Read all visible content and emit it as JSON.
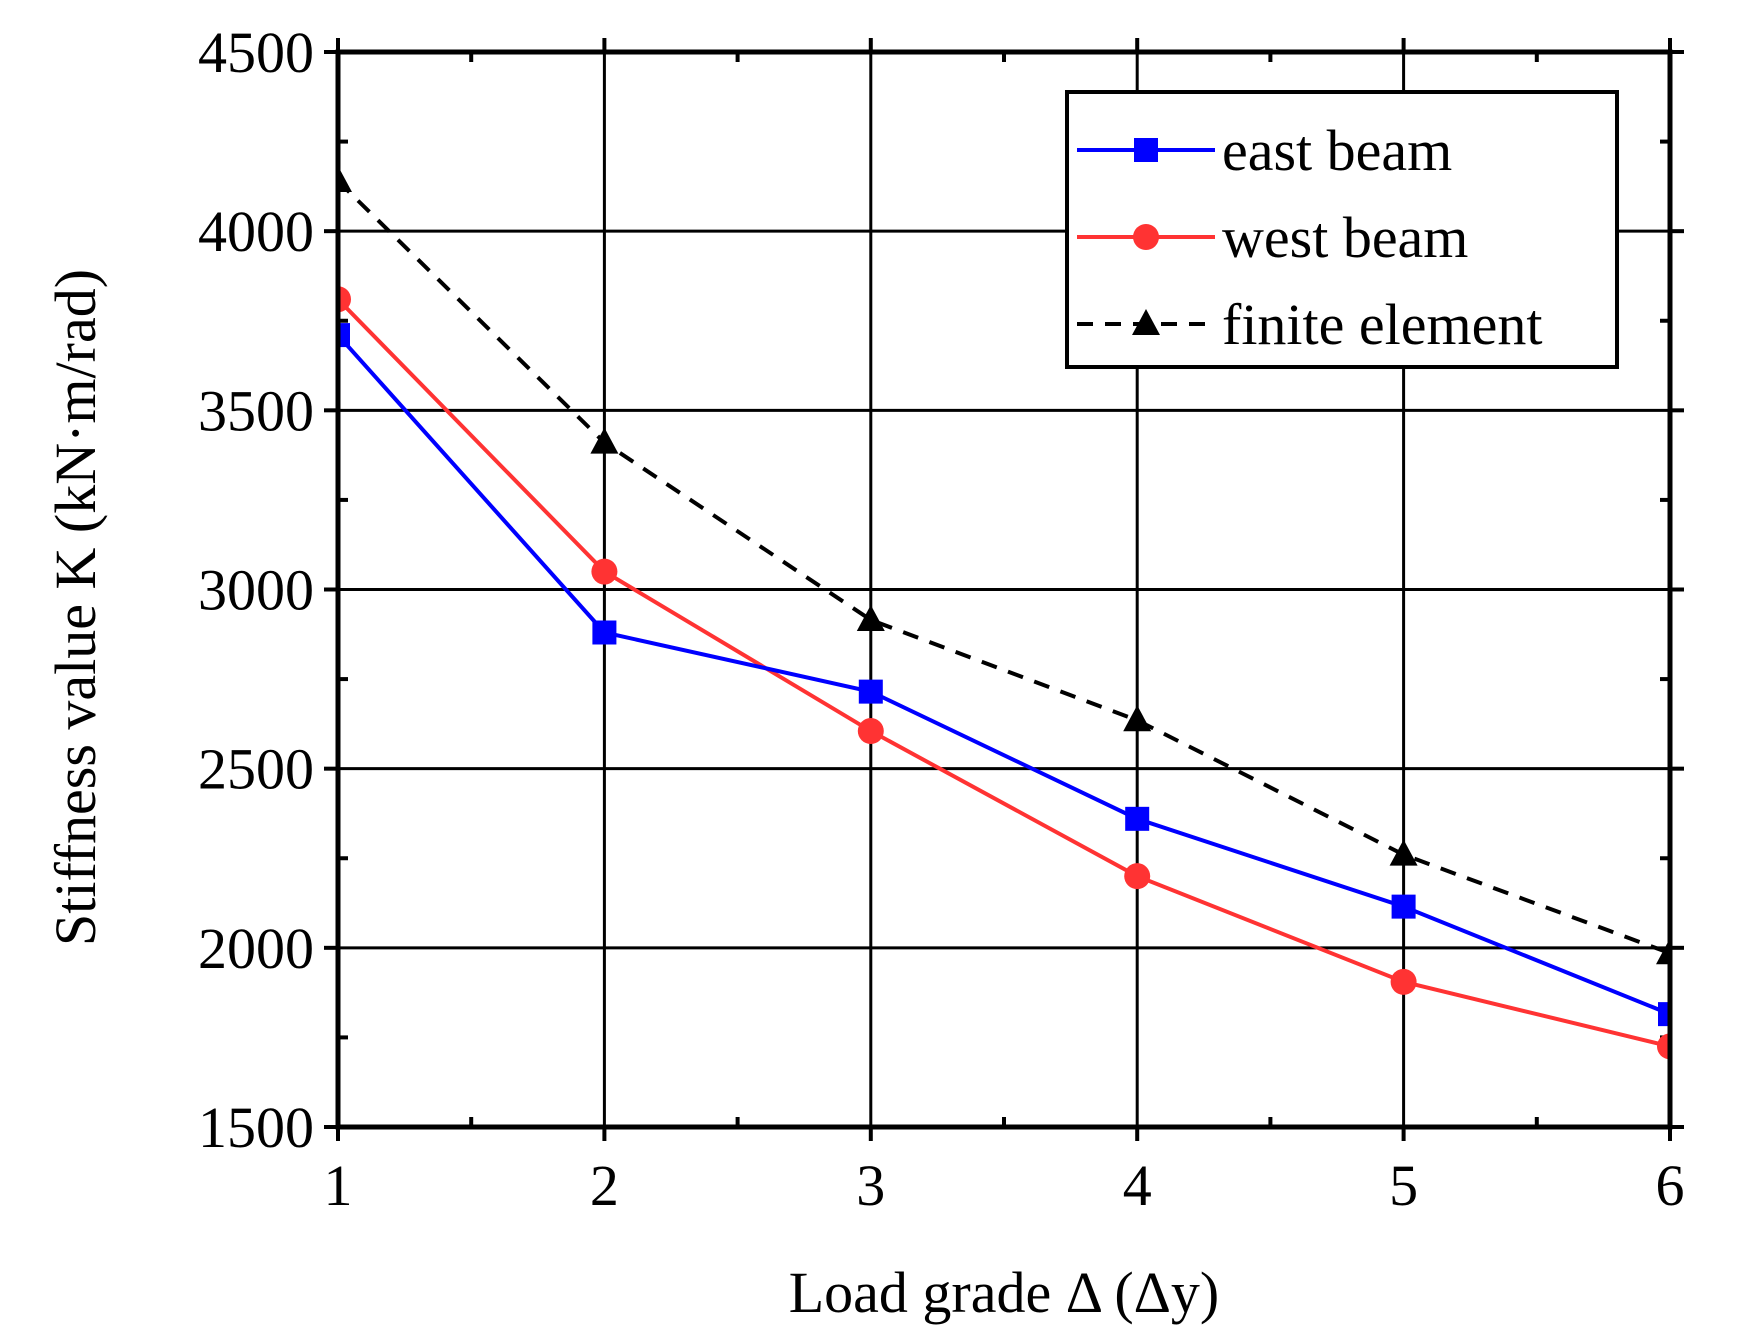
{
  "chart_data": {
    "type": "line",
    "title": "",
    "xlabel": "Load grade Δ (Δy)",
    "ylabel": "Stiffness value K (kN·m/rad)",
    "xlim": [
      1,
      6
    ],
    "ylim": [
      1500,
      4500
    ],
    "x_ticks": [
      "1",
      "2",
      "3",
      "4",
      "5",
      "6"
    ],
    "y_ticks": [
      "1500",
      "2000",
      "2500",
      "3000",
      "3500",
      "4000",
      "4500"
    ],
    "x_tick_values": [
      1,
      2,
      3,
      4,
      5,
      6
    ],
    "y_tick_values": [
      1500,
      2000,
      2500,
      3000,
      3500,
      4000,
      4500
    ],
    "grid": true,
    "legend_position": "top-right",
    "x": [
      1,
      2,
      3,
      4,
      5,
      6
    ],
    "series": [
      {
        "name": "east beam",
        "values": [
          3710,
          2880,
          2715,
          2360,
          2115,
          1815
        ],
        "color": "#0000ff",
        "marker": "square",
        "line": "solid"
      },
      {
        "name": "west beam",
        "values": [
          3810,
          3050,
          2605,
          2200,
          1905,
          1725
        ],
        "color": "#ff3333",
        "marker": "circle",
        "line": "solid"
      },
      {
        "name": "finite element",
        "values": [
          4140,
          3410,
          2915,
          2635,
          2260,
          1985
        ],
        "color": "#000000",
        "marker": "triangle",
        "line": "dashed"
      }
    ]
  }
}
